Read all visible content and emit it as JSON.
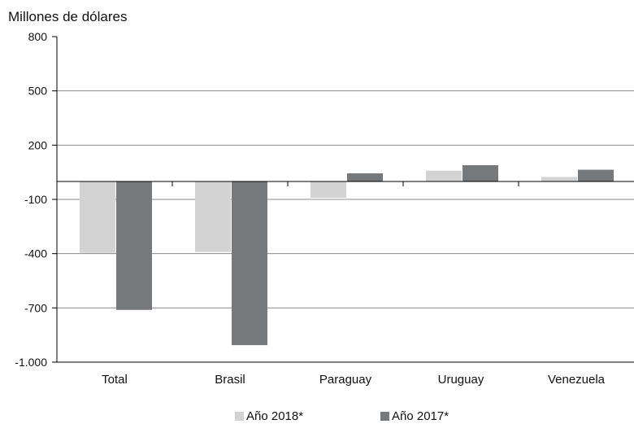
{
  "chart_data": {
    "type": "bar",
    "ylabel": "Millones de dólares",
    "categories": [
      "Total",
      "Brasil",
      "Paraguay",
      "Uruguay",
      "Venezuela"
    ],
    "series": [
      {
        "name": "Año 2018*",
        "values": [
          -395,
          -390,
          -90,
          60,
          25
        ],
        "color": "#d3d3d3"
      },
      {
        "name": "Año 2017*",
        "values": [
          -710,
          -905,
          45,
          90,
          65
        ],
        "color": "#76797c"
      }
    ],
    "ylim": [
      -1000,
      800
    ],
    "yticks": [
      800,
      500,
      200,
      -100,
      -400,
      -700,
      -1000
    ],
    "ytick_labels": [
      "800",
      "500",
      "200",
      "-100",
      "-400",
      "-700",
      "-1.000"
    ],
    "grid": true,
    "legend_position": "bottom"
  }
}
